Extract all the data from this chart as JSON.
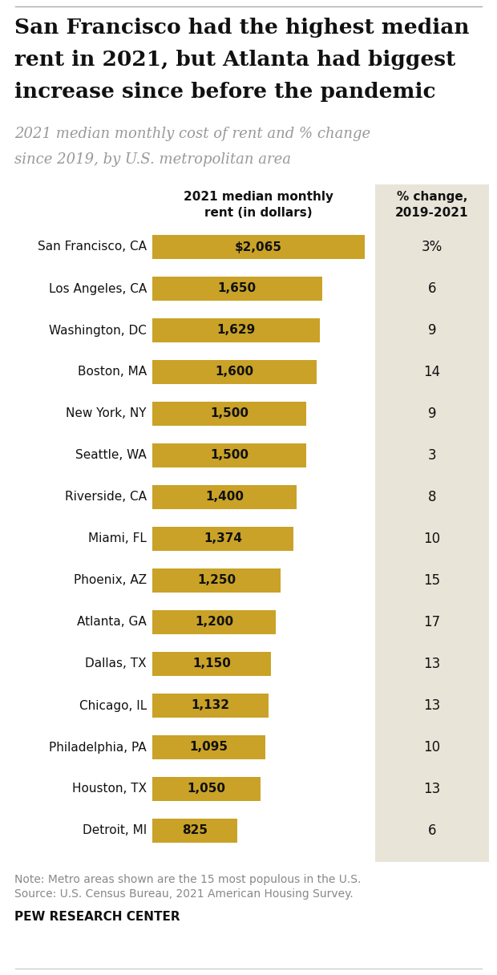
{
  "title_line1": "San Francisco had the highest median",
  "title_line2": "rent in 2021, but Atlanta had biggest",
  "title_line3": "increase since before the pandemic",
  "subtitle_line1": "2021 median monthly cost of rent and % change",
  "subtitle_line2": "since 2019, by U.S. metropolitan area",
  "col_header_left": "2021 median monthly\nrent (in dollars)",
  "col_header_right": "% change,\n2019-2021",
  "cities": [
    "San Francisco, CA",
    "Los Angeles, CA",
    "Washington, DC",
    "Boston, MA",
    "New York, NY",
    "Seattle, WA",
    "Riverside, CA",
    "Miami, FL",
    "Phoenix, AZ",
    "Atlanta, GA",
    "Dallas, TX",
    "Chicago, IL",
    "Philadelphia, PA",
    "Houston, TX",
    "Detroit, MI"
  ],
  "rent_values": [
    2065,
    1650,
    1629,
    1600,
    1500,
    1500,
    1400,
    1374,
    1250,
    1200,
    1150,
    1132,
    1095,
    1050,
    825
  ],
  "rent_labels": [
    "$2,065",
    "1,650",
    "1,629",
    "1,600",
    "1,500",
    "1,500",
    "1,400",
    "1,374",
    "1,250",
    "1,200",
    "1,150",
    "1,132",
    "1,095",
    "1,050",
    "825"
  ],
  "pct_change": [
    "3%",
    "6",
    "9",
    "14",
    "9",
    "3",
    "8",
    "10",
    "15",
    "17",
    "13",
    "13",
    "10",
    "13",
    "6"
  ],
  "bar_color": "#C9A227",
  "right_panel_bg": "#E8E4D8",
  "background_color": "#FFFFFF",
  "note_line1": "Note: Metro areas shown are the 15 most populous in the U.S.",
  "note_line2": "Source: U.S. Census Bureau, 2021 American Housing Survey.",
  "footer": "PEW RESEARCH CENTER",
  "title_top_line_color": "#AAAAAA",
  "bottom_line_color": "#CCCCCC"
}
